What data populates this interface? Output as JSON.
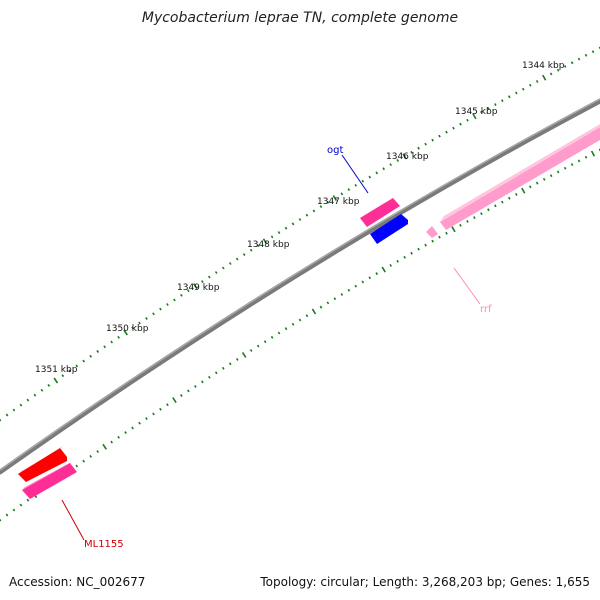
{
  "title": "Mycobacterium leprae TN, complete genome",
  "footer": {
    "accession": "Accession: NC_002677",
    "summary": "Topology: circular; Length: 3,268,203 bp; Genes: 1,655"
  },
  "scale": {
    "kbp_labels": [
      "1344 kbp",
      "1345 kbp",
      "1346 kbp",
      "1347 kbp",
      "1348 kbp",
      "1349 kbp",
      "1350 kbp",
      "1351 kbp"
    ]
  },
  "genes": {
    "ogt": {
      "label": "ogt",
      "color": "#0000cc"
    },
    "rrf": {
      "label": "rrf",
      "color": "#ff88bb"
    },
    "ml1155": {
      "label": "ML1155",
      "color": "#cc0000"
    }
  },
  "colors": {
    "backbone": "#808080",
    "tick": "#1a7a1a",
    "feature_red": "#ff0000",
    "feature_magenta": "#ff2d96",
    "feature_blue": "#0000ff",
    "feature_pink": "#ffa6cc"
  }
}
